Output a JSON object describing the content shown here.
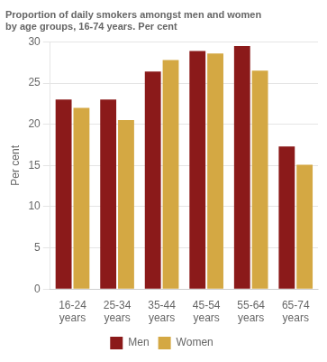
{
  "chart_data": {
    "type": "bar",
    "title": "Proportion of daily smokers amongst men and women",
    "subtitle": "by age groups, 16-74 years. Per cent",
    "ylabel": "Per cent",
    "categories": [
      "16-24\nyears",
      "25-34\nyears",
      "35-44\nyears",
      "45-54\nyears",
      "55-64\nyears",
      "65-74\nyears"
    ],
    "series": [
      {
        "name": "Men",
        "color": "#8B1A1A",
        "values": [
          23.0,
          23.0,
          26.4,
          28.9,
          29.5,
          17.3
        ]
      },
      {
        "name": "Women",
        "color": "#D4A843",
        "values": [
          22.0,
          20.5,
          27.8,
          28.6,
          26.5,
          15.1
        ]
      }
    ],
    "ylim": [
      0,
      30
    ],
    "yticks": [
      0,
      5,
      10,
      15,
      20,
      25,
      30
    ],
    "grid": true,
    "legend": "bottom"
  }
}
